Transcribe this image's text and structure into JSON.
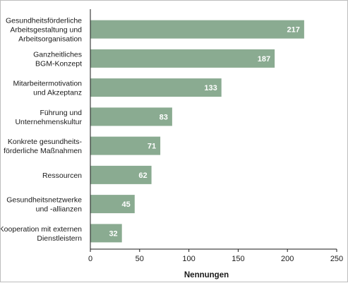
{
  "chart_data": {
    "type": "bar",
    "orientation": "horizontal",
    "categories": [
      [
        "Gesundheitsförderliche",
        "Arbeitsgestaltung und",
        "Arbeitsorganisation"
      ],
      [
        "Ganzheitliches",
        "BGM-Konzept"
      ],
      [
        "Mitarbeitermotivation",
        "und Akzeptanz"
      ],
      [
        "Führung und",
        "Unternehmenskultur"
      ],
      [
        "Konkrete gesundheits-",
        "förderliche Maßnahmen"
      ],
      [
        "Ressourcen"
      ],
      [
        "Gesundheitsnetzwerke",
        "und -allianzen"
      ],
      [
        "Kooperation mit externen",
        "Dienstleistern"
      ]
    ],
    "values": [
      217,
      187,
      133,
      83,
      71,
      62,
      45,
      32
    ],
    "xlabel": "Nennungen",
    "xlim": [
      0,
      250
    ],
    "xticks": [
      0,
      50,
      100,
      150,
      200,
      250
    ],
    "data_labels": true,
    "grid": false,
    "colors": {
      "bar": "#8aab91",
      "value_label": "#ffffff",
      "axis": "#1a1a1a"
    }
  }
}
